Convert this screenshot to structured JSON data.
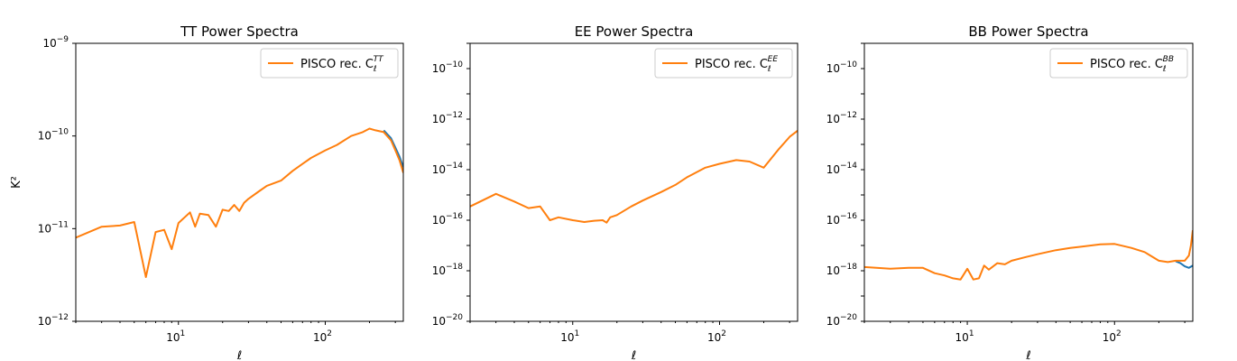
{
  "chart_data": [
    {
      "type": "line",
      "title": "TT Power Spectra",
      "xlabel": "ℓ",
      "ylabel": "K²",
      "xscale": "log",
      "yscale": "log",
      "xlim": [
        2,
        340
      ],
      "ylim": [
        1e-12,
        1e-09
      ],
      "xticks": [
        {
          "base": "10",
          "exp": "1"
        },
        {
          "base": "10",
          "exp": "2"
        }
      ],
      "yticks": [
        {
          "base": "10",
          "exp": "−12"
        },
        {
          "base": "10",
          "exp": "−11"
        },
        {
          "base": "10",
          "exp": "−10"
        },
        {
          "base": "10",
          "exp": "−9"
        }
      ],
      "legend": {
        "label": "PISCO rec. C",
        "sub": "ℓ",
        "sup": "TT",
        "position": "upper right"
      },
      "series": [
        {
          "name": "PISCO rec. C_ℓ^TT",
          "color": "#ff7f0e",
          "x": [
            2,
            3,
            4,
            5,
            6,
            7,
            8,
            9,
            10,
            12,
            13,
            14,
            16,
            18,
            20,
            22,
            24,
            26,
            28,
            30,
            35,
            40,
            50,
            60,
            70,
            80,
            100,
            120,
            150,
            180,
            200,
            220,
            250,
            280,
            300,
            320,
            340
          ],
          "y": [
            8e-12,
            1.05e-11,
            1.08e-11,
            1.18e-11,
            3e-12,
            9.2e-12,
            9.7e-12,
            6e-12,
            1.15e-11,
            1.5e-11,
            1.05e-11,
            1.45e-11,
            1.4e-11,
            1.05e-11,
            1.6e-11,
            1.55e-11,
            1.8e-11,
            1.55e-11,
            1.9e-11,
            2.1e-11,
            2.5e-11,
            2.9e-11,
            3.3e-11,
            4.2e-11,
            5e-11,
            5.8e-11,
            7e-11,
            8e-11,
            1e-10,
            1.1e-10,
            1.2e-10,
            1.15e-10,
            1.1e-10,
            9e-11,
            7e-11,
            5.5e-11,
            4e-11
          ]
        },
        {
          "name": "",
          "color": "#1f77b4",
          "x": [
            250,
            280,
            300,
            320,
            340
          ],
          "y": [
            1.15e-10,
            9.5e-11,
            7.5e-11,
            6e-11,
            4.6e-11
          ]
        }
      ]
    },
    {
      "type": "line",
      "title": "EE Power Spectra",
      "xlabel": "ℓ",
      "xscale": "log",
      "yscale": "log",
      "xlim": [
        2,
        340
      ],
      "ylim": [
        1e-20,
        1e-09
      ],
      "xticks": [
        {
          "base": "10",
          "exp": "1"
        },
        {
          "base": "10",
          "exp": "2"
        }
      ],
      "yticks": [
        {
          "base": "10",
          "exp": "−20"
        },
        {
          "base": "10",
          "exp": "−18"
        },
        {
          "base": "10",
          "exp": "−16"
        },
        {
          "base": "10",
          "exp": "−14"
        },
        {
          "base": "10",
          "exp": "−12"
        },
        {
          "base": "10",
          "exp": "−10"
        }
      ],
      "legend": {
        "label": "PISCO rec. C",
        "sub": "ℓ",
        "sup": "EE",
        "position": "upper right"
      },
      "series": [
        {
          "name": "PISCO rec. C_ℓ^EE",
          "color": "#ff7f0e",
          "x": [
            2,
            3,
            4,
            5,
            6,
            7,
            8,
            10,
            12,
            14,
            16,
            17,
            18,
            20,
            25,
            30,
            40,
            50,
            60,
            80,
            100,
            130,
            160,
            200,
            250,
            300,
            340
          ],
          "y": [
            3.5e-16,
            1.1e-15,
            5.5e-16,
            3e-16,
            3.5e-16,
            1e-16,
            1.3e-16,
            1e-16,
            8.5e-17,
            9.5e-17,
            1e-16,
            8e-17,
            1.3e-16,
            1.6e-16,
            3.5e-16,
            6e-16,
            1.3e-15,
            2.5e-15,
            5e-15,
            1.2e-14,
            1.7e-14,
            2.4e-14,
            2.1e-14,
            1.2e-14,
            6e-14,
            2e-13,
            3.5e-13
          ]
        }
      ]
    },
    {
      "type": "line",
      "title": "BB Power Spectra",
      "xlabel": "ℓ",
      "xscale": "log",
      "yscale": "log",
      "xlim": [
        2,
        340
      ],
      "ylim": [
        1e-20,
        1e-09
      ],
      "xticks": [
        {
          "base": "10",
          "exp": "1"
        },
        {
          "base": "10",
          "exp": "2"
        }
      ],
      "yticks": [
        {
          "base": "10",
          "exp": "−20"
        },
        {
          "base": "10",
          "exp": "−18"
        },
        {
          "base": "10",
          "exp": "−16"
        },
        {
          "base": "10",
          "exp": "−14"
        },
        {
          "base": "10",
          "exp": "−12"
        },
        {
          "base": "10",
          "exp": "−10"
        }
      ],
      "legend": {
        "label": "PISCO rec. C",
        "sub": "ℓ",
        "sup": "BB",
        "position": "upper right"
      },
      "series": [
        {
          "name": "PISCO rec. C_ℓ^BB",
          "color": "#ff7f0e",
          "x": [
            2,
            3,
            4,
            5,
            6,
            7,
            8,
            9,
            10,
            11,
            12,
            13,
            14,
            16,
            18,
            20,
            25,
            30,
            40,
            50,
            60,
            80,
            100,
            130,
            160,
            200,
            230,
            260,
            300,
            320,
            330,
            340
          ],
          "y": [
            1.4e-18,
            1.2e-18,
            1.3e-18,
            1.3e-18,
            8e-19,
            6.5e-19,
            5e-19,
            4.5e-19,
            1.2e-18,
            4.5e-19,
            5e-19,
            1.6e-18,
            1.1e-18,
            2e-18,
            1.8e-18,
            2.5e-18,
            3.5e-18,
            4.5e-18,
            6.5e-18,
            8e-18,
            9e-18,
            1.1e-17,
            1.15e-17,
            8e-18,
            5.5e-18,
            2.5e-18,
            2.2e-18,
            2.5e-18,
            2.5e-18,
            4e-18,
            1e-17,
            4e-17
          ]
        },
        {
          "name": "",
          "color": "#1f77b4",
          "x": [
            260,
            280,
            300,
            320,
            340
          ],
          "y": [
            2.4e-18,
            2e-18,
            1.5e-18,
            1.3e-18,
            1.6e-18
          ]
        }
      ]
    }
  ]
}
